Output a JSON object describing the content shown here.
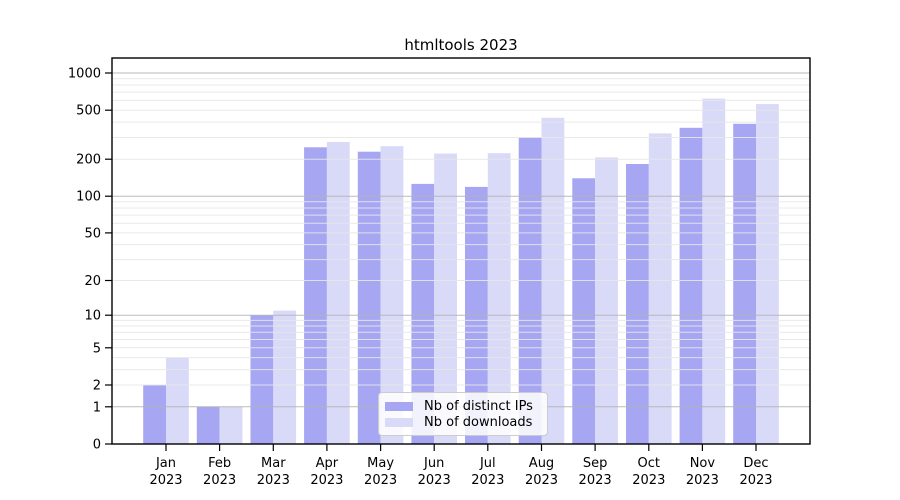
{
  "title": "htmltools 2023",
  "chart_data": {
    "type": "bar",
    "title": "htmltools 2023",
    "scale": "log1p",
    "grid": "on",
    "legend_position": "lower-center",
    "background_color": "#ffffff",
    "grid_major_color": "#b3b3b3",
    "grid_minor_color": "#e7e7e7",
    "categories": [
      "Jan 2023",
      "Feb 2023",
      "Mar 2023",
      "Apr 2023",
      "May 2023",
      "Jun 2023",
      "Jul 2023",
      "Aug 2023",
      "Sep 2023",
      "Oct 2023",
      "Nov 2023",
      "Dec 2023"
    ],
    "yticks": [
      0,
      1,
      2,
      5,
      10,
      20,
      50,
      100,
      200,
      500,
      1000
    ],
    "ylim": [
      0,
      1325
    ],
    "xlabel": "",
    "ylabel": "",
    "series": [
      {
        "name": "Nb of distinct IPs",
        "color": "#a6a6f2",
        "values": [
          2,
          1,
          10,
          250,
          230,
          126,
          119,
          300,
          140,
          183,
          360,
          388
        ]
      },
      {
        "name": "Nb of downloads",
        "color": "#d9d9f8",
        "values": [
          4,
          1,
          11,
          276,
          255,
          222,
          224,
          434,
          207,
          324,
          620,
          560
        ]
      }
    ]
  }
}
